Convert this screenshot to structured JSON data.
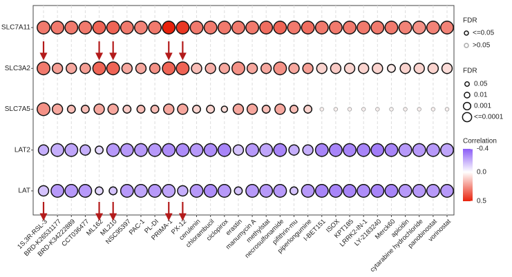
{
  "chart_data": {
    "type": "bubble",
    "categories": [
      "1S,3R-RSL-3",
      "BRD-K26531177",
      "BRD-K34222889",
      "CCT036477",
      "ML162",
      "ML210",
      "NSC95397",
      "PAC-1",
      "PL-DI",
      "PRIMA-1",
      "PX-12",
      "cerulenin",
      "chlorambucil",
      "ciclopirox",
      "erastin",
      "manumycin A",
      "methylstat",
      "necrosulfonamide",
      "pifithrin-mu",
      "piperlongumine",
      "I-BET151",
      "ISOX",
      "KPT185",
      "LRRK2-IN-1",
      "LY-2183240",
      "Merck60",
      "apicidin",
      "cytarabine hydrochloride",
      "panobinostat",
      "vorinostat"
    ],
    "rows": [
      {
        "name": "SLC7A11",
        "values": [
          0.3,
          0.3,
          0.3,
          0.3,
          0.35,
          0.35,
          0.3,
          0.28,
          0.3,
          0.5,
          0.45,
          0.3,
          0.3,
          0.3,
          0.3,
          0.3,
          0.33,
          0.35,
          0.3,
          0.33,
          0.3,
          0.3,
          0.3,
          0.3,
          0.3,
          0.3,
          0.28,
          0.25,
          0.28,
          0.28
        ],
        "fdr": [
          0.0001,
          0.0001,
          0.0001,
          0.0001,
          0.0001,
          0.0001,
          0.0001,
          0.0001,
          0.0001,
          0.0001,
          0.0001,
          0.0001,
          0.0001,
          0.0001,
          0.0001,
          0.0001,
          0.0001,
          0.0001,
          0.0001,
          0.0001,
          0.0001,
          0.0001,
          0.0001,
          0.0001,
          0.0001,
          0.0001,
          0.0001,
          0.0001,
          0.0001,
          0.0001
        ]
      },
      {
        "name": "SLC3A2",
        "values": [
          0.3,
          0.22,
          0.2,
          0.22,
          0.35,
          0.35,
          0.2,
          0.2,
          0.25,
          0.35,
          0.35,
          0.15,
          0.18,
          0.2,
          0.25,
          0.2,
          0.2,
          0.25,
          0.2,
          0.22,
          0.1,
          0.12,
          0.1,
          0.1,
          0.1,
          0.05,
          0.1,
          0.1,
          0.1,
          0.08
        ],
        "fdr": [
          0.0001,
          0.001,
          0.001,
          0.001,
          0.0001,
          0.0001,
          0.001,
          0.001,
          0.001,
          0.0001,
          0.0001,
          0.001,
          0.001,
          0.001,
          0.0001,
          0.001,
          0.001,
          0.0001,
          0.001,
          0.001,
          0.001,
          0.001,
          0.001,
          0.001,
          0.001,
          0.01,
          0.001,
          0.001,
          0.001,
          0.001
        ]
      },
      {
        "name": "SLC7A5",
        "values": [
          0.25,
          0.2,
          0.15,
          0.15,
          0.2,
          0.2,
          0.12,
          0.15,
          0.15,
          0.2,
          0.2,
          0.1,
          0.1,
          0.08,
          0.2,
          0.2,
          0.15,
          0.2,
          0.15,
          0.1,
          0.05,
          0.05,
          0.05,
          0.05,
          0.05,
          0.03,
          0.05,
          0.05,
          0.05,
          0.05
        ],
        "fdr": [
          0.0001,
          0.001,
          0.01,
          0.01,
          0.001,
          0.001,
          0.01,
          0.01,
          0.01,
          0.001,
          0.001,
          0.01,
          0.01,
          0.05,
          0.001,
          0.001,
          0.01,
          0.001,
          0.01,
          0.01,
          0.5,
          0.5,
          0.5,
          0.5,
          0.5,
          0.5,
          0.5,
          0.5,
          0.5,
          0.5
        ]
      },
      {
        "name": "LAT2",
        "values": [
          -0.2,
          -0.2,
          -0.22,
          -0.2,
          -0.1,
          -0.25,
          -0.25,
          -0.25,
          -0.25,
          -0.28,
          -0.28,
          -0.25,
          -0.28,
          -0.3,
          -0.15,
          -0.25,
          -0.22,
          -0.3,
          -0.2,
          -0.2,
          -0.3,
          -0.3,
          -0.3,
          -0.3,
          -0.32,
          -0.3,
          -0.25,
          -0.25,
          -0.25,
          -0.22
        ],
        "fdr": [
          0.001,
          0.0001,
          0.0001,
          0.001,
          0.01,
          0.0001,
          0.0001,
          0.0001,
          0.0001,
          0.0001,
          0.0001,
          0.0001,
          0.0001,
          0.0001,
          0.001,
          0.0001,
          0.0001,
          0.0001,
          0.001,
          0.001,
          0.0001,
          0.0001,
          0.0001,
          0.0001,
          0.0001,
          0.0001,
          0.0001,
          0.0001,
          0.0001,
          0.0001
        ]
      },
      {
        "name": "LAT",
        "values": [
          -0.15,
          -0.25,
          -0.25,
          -0.25,
          -0.1,
          -0.15,
          -0.25,
          -0.22,
          -0.25,
          -0.22,
          -0.2,
          -0.25,
          -0.28,
          -0.25,
          -0.15,
          -0.25,
          -0.25,
          -0.25,
          -0.15,
          -0.25,
          -0.3,
          -0.3,
          -0.3,
          -0.28,
          -0.3,
          -0.3,
          -0.25,
          -0.25,
          -0.25,
          -0.25
        ],
        "fdr": [
          0.001,
          0.0001,
          0.0001,
          0.0001,
          0.01,
          0.01,
          0.0001,
          0.0001,
          0.0001,
          0.0001,
          0.001,
          0.0001,
          0.0001,
          0.0001,
          0.01,
          0.0001,
          0.0001,
          0.0001,
          0.01,
          0.0001,
          0.0001,
          0.0001,
          0.0001,
          0.0001,
          0.0001,
          0.0001,
          0.0001,
          0.0001,
          0.0001,
          0.0001
        ]
      }
    ],
    "fdr_color_legend": {
      "title": "FDR",
      "items": [
        "<=0.05",
        ">0.05"
      ],
      "colors": [
        "#111111",
        "#aaaaaa"
      ]
    },
    "size_legend": {
      "title": "FDR",
      "items": [
        0.05,
        0.01,
        0.001,
        {
          "value": 0.0001,
          "label": "<=0.0001"
        }
      ]
    },
    "color_legend": {
      "title": "Correlation",
      "clim": [
        -0.4,
        0.5
      ],
      "ticks": [
        -0.4,
        {
          "value": 0,
          "label": "0.0"
        },
        0.5
      ],
      "colors": [
        "#8b5cf6",
        "#ffffff",
        "#e8220c"
      ]
    }
  }
}
